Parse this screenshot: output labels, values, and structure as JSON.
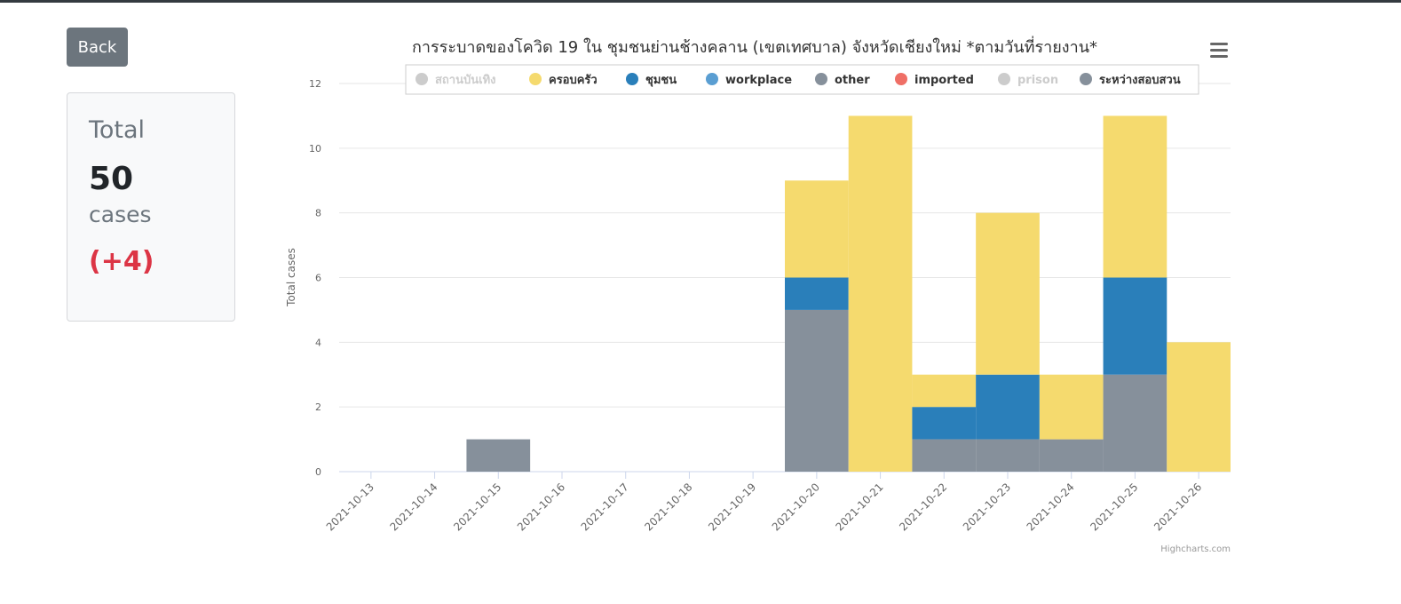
{
  "back_label": "Back",
  "summary": {
    "title": "Total",
    "count": "50",
    "unit": "cases",
    "delta": "(+4)"
  },
  "credits": "Highcharts.com",
  "menu_icon": "hamburger-menu-icon",
  "chart_data": {
    "type": "bar",
    "stacked": true,
    "title": "การระบาดของโควิด 19 ใน ชุมชนย่านช้างคลาน (เขตเทศบาล) จังหวัดเชียงใหม่ *ตามวันที่รายงาน*",
    "ylabel": "Total cases",
    "xlabel": "",
    "ylim": [
      0,
      12
    ],
    "yticks": [
      0,
      2,
      4,
      6,
      8,
      10,
      12
    ],
    "grid": true,
    "legend_position": "top",
    "categories": [
      "2021-10-13",
      "2021-10-14",
      "2021-10-15",
      "2021-10-16",
      "2021-10-17",
      "2021-10-18",
      "2021-10-19",
      "2021-10-20",
      "2021-10-21",
      "2021-10-22",
      "2021-10-23",
      "2021-10-24",
      "2021-10-25",
      "2021-10-26"
    ],
    "series": [
      {
        "name": "สถานบันเทิง",
        "color": "#cccccc",
        "visible": false,
        "values": [
          0,
          0,
          0,
          0,
          0,
          0,
          0,
          0,
          0,
          0,
          0,
          0,
          0,
          0
        ]
      },
      {
        "name": "ครอบครัว",
        "color": "#f5da6e",
        "visible": true,
        "values": [
          0,
          0,
          0,
          0,
          0,
          0,
          0,
          3,
          11,
          1,
          5,
          2,
          5,
          4
        ]
      },
      {
        "name": "ชุมชน",
        "color": "#2a7fba",
        "visible": true,
        "values": [
          0,
          0,
          0,
          0,
          0,
          0,
          0,
          1,
          0,
          1,
          2,
          0,
          3,
          0
        ]
      },
      {
        "name": "workplace",
        "color": "#5a9ed2",
        "visible": true,
        "values": [
          0,
          0,
          0,
          0,
          0,
          0,
          0,
          0,
          0,
          0,
          0,
          0,
          0,
          0
        ]
      },
      {
        "name": "other",
        "color": "#86909b",
        "visible": true,
        "values": [
          0,
          0,
          0,
          0,
          0,
          0,
          0,
          0,
          0,
          0,
          0,
          0,
          0,
          0
        ]
      },
      {
        "name": "imported",
        "color": "#ef6f66",
        "visible": true,
        "values": [
          0,
          0,
          0,
          0,
          0,
          0,
          0,
          0,
          0,
          0,
          0,
          0,
          0,
          0
        ]
      },
      {
        "name": "prison",
        "color": "#cccccc",
        "visible": false,
        "values": [
          0,
          0,
          0,
          0,
          0,
          0,
          0,
          0,
          0,
          0,
          0,
          0,
          0,
          0
        ]
      },
      {
        "name": "ระหว่างสอบสวน",
        "color": "#86909b",
        "visible": true,
        "values": [
          0,
          0,
          1,
          0,
          0,
          0,
          0,
          5,
          0,
          1,
          1,
          1,
          3,
          0
        ]
      }
    ]
  }
}
